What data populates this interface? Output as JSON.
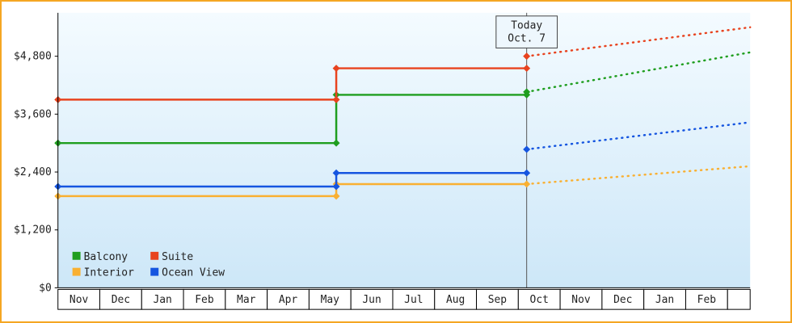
{
  "page": {
    "border_color": "#f5a623",
    "background": "#ffffff"
  },
  "chart_data": {
    "type": "line",
    "title": "",
    "xlabel": "",
    "ylabel": "",
    "ylim": [
      0,
      5700
    ],
    "x_extent": 16.54,
    "grid": false,
    "legend_position": "bottom-left",
    "yticks": [
      {
        "value": 0,
        "label": "$0"
      },
      {
        "value": 1200,
        "label": "$1,200"
      },
      {
        "value": 2400,
        "label": "$2,400"
      },
      {
        "value": 3600,
        "label": "$3,600"
      },
      {
        "value": 4800,
        "label": "$4,800"
      }
    ],
    "months": [
      "Nov",
      "Dec",
      "Jan",
      "Feb",
      "Mar",
      "Apr",
      "May",
      "Jun",
      "Jul",
      "Aug",
      "Sep",
      "Oct",
      "Nov",
      "Dec",
      "Jan",
      "Feb"
    ],
    "today": {
      "x": 11.2,
      "line1": "Today",
      "line2": "Oct. 7"
    },
    "series": [
      {
        "name": "Balcony",
        "color": "#1f9e1f",
        "solid": [
          [
            0,
            3000
          ],
          [
            6.65,
            3000
          ],
          [
            6.65,
            4000
          ],
          [
            11.2,
            4000
          ]
        ],
        "dotted": [
          [
            11.2,
            4060
          ],
          [
            16.54,
            4880
          ]
        ],
        "markers": [
          [
            0,
            3000
          ],
          [
            6.65,
            3000
          ],
          [
            6.65,
            4000
          ],
          [
            11.2,
            4000
          ],
          [
            11.2,
            4060
          ]
        ]
      },
      {
        "name": "Suite",
        "color": "#e8431f",
        "solid": [
          [
            0,
            3900
          ],
          [
            6.65,
            3900
          ],
          [
            6.65,
            4550
          ],
          [
            11.2,
            4550
          ]
        ],
        "dotted": [
          [
            11.2,
            4800
          ],
          [
            16.54,
            5400
          ]
        ],
        "markers": [
          [
            0,
            3900
          ],
          [
            6.65,
            3900
          ],
          [
            6.65,
            4550
          ],
          [
            11.2,
            4550
          ],
          [
            11.2,
            4800
          ]
        ]
      },
      {
        "name": "Interior",
        "color": "#f9b032",
        "solid": [
          [
            0,
            1900
          ],
          [
            6.65,
            1900
          ],
          [
            6.65,
            2150
          ],
          [
            11.2,
            2150
          ]
        ],
        "dotted": [
          [
            11.2,
            2150
          ],
          [
            16.54,
            2520
          ]
        ],
        "markers": [
          [
            0,
            1900
          ],
          [
            6.65,
            1900
          ],
          [
            6.65,
            2150
          ],
          [
            11.2,
            2150
          ]
        ]
      },
      {
        "name": "Ocean View",
        "color": "#1555e0",
        "solid": [
          [
            0,
            2100
          ],
          [
            6.65,
            2100
          ],
          [
            6.65,
            2380
          ],
          [
            11.2,
            2380
          ]
        ],
        "dotted": [
          [
            11.2,
            2870
          ],
          [
            16.54,
            3430
          ]
        ],
        "markers": [
          [
            0,
            2100
          ],
          [
            6.65,
            2100
          ],
          [
            6.65,
            2380
          ],
          [
            11.2,
            2380
          ],
          [
            11.2,
            2870
          ]
        ]
      }
    ],
    "colors": {
      "plot_bg_top": "#f4fbff",
      "plot_bg_bottom": "#cde7f8",
      "axis": "#000000",
      "today_line": "#555555",
      "text": "#222222",
      "month_box_fill": "#ffffff",
      "month_box_border": "#000000",
      "today_box_fill": "#eef7fd",
      "today_box_border": "#444444"
    }
  }
}
